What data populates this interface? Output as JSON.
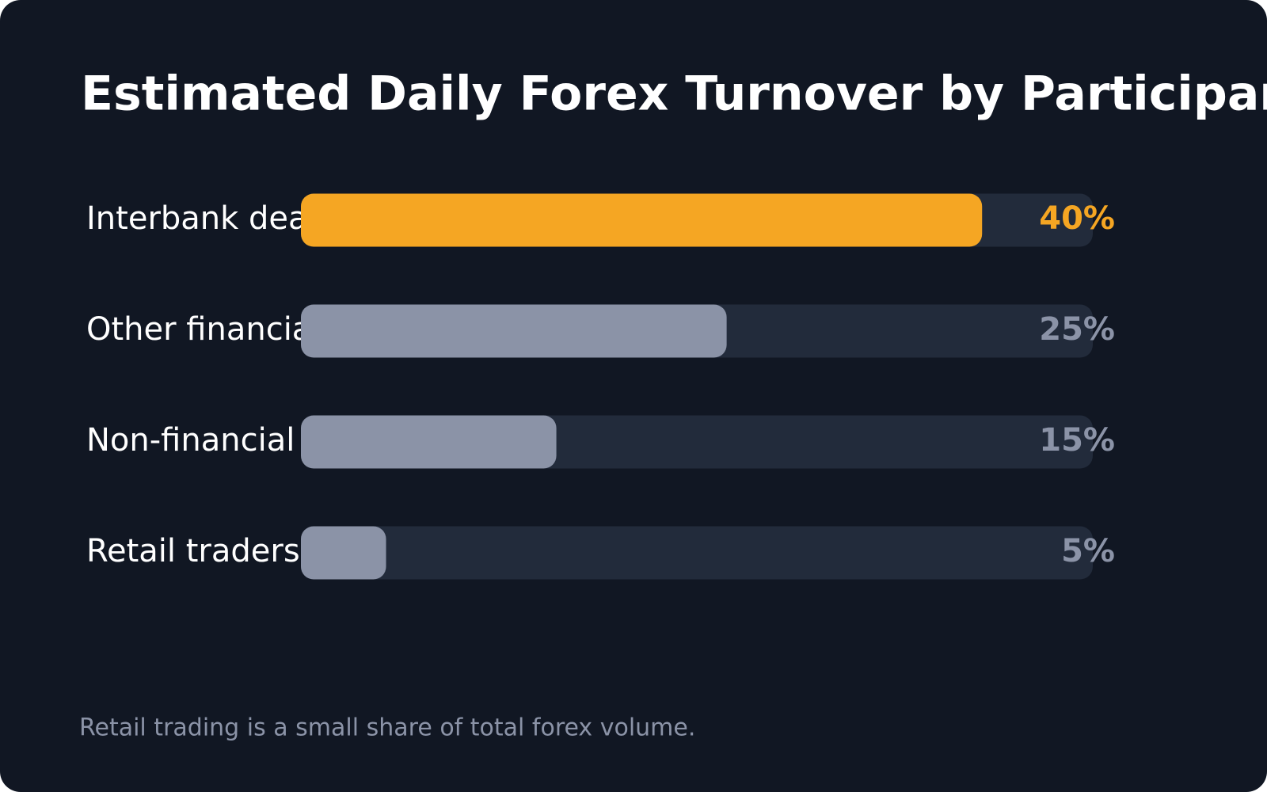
{
  "chart_data": {
    "type": "bar",
    "orientation": "horizontal",
    "title": "Estimated Daily Forex Turnover by Participant",
    "categories": [
      "Interbank deal",
      "Other financial",
      "Non-financial c",
      "Retail traders"
    ],
    "values": [
      40,
      25,
      15,
      5
    ],
    "value_labels": [
      "40%",
      "25%",
      "15%",
      "5%"
    ],
    "colors": [
      "#f5a623",
      "#8b93a7",
      "#8b93a7",
      "#8b93a7"
    ],
    "xlim": [
      0,
      46.5
    ],
    "footnote": "Retail trading is a small share of total forex volume."
  }
}
